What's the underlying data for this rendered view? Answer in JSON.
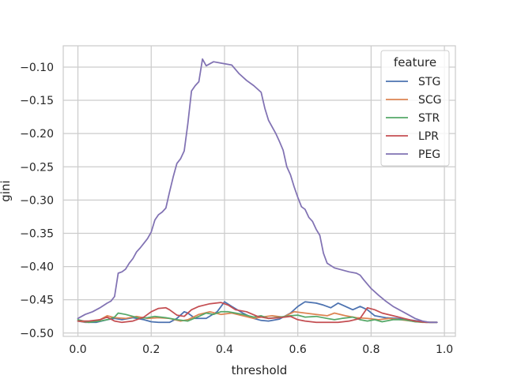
{
  "chart_data": {
    "type": "line",
    "title": "",
    "xlabel": "threshold",
    "ylabel": "gini",
    "xlim": [
      -0.04,
      1.03
    ],
    "ylim": [
      -0.505,
      -0.068
    ],
    "xticks": [
      0.0,
      0.2,
      0.4,
      0.6,
      0.8,
      1.0
    ],
    "xtick_labels": [
      "0.0",
      "0.2",
      "0.4",
      "0.6",
      "0.8",
      "1.0"
    ],
    "yticks": [
      -0.1,
      -0.15,
      -0.2,
      -0.25,
      -0.3,
      -0.35,
      -0.4,
      -0.45,
      -0.5
    ],
    "ytick_labels": [
      "−0.10",
      "−0.15",
      "−0.20",
      "−0.25",
      "−0.30",
      "−0.35",
      "−0.40",
      "−0.45",
      "−0.50"
    ],
    "grid": true,
    "legend": {
      "title": "feature",
      "position": "top-right"
    },
    "series": [
      {
        "name": "STG",
        "color": "#4c72b0",
        "x": [
          0.0,
          0.02,
          0.05,
          0.08,
          0.1,
          0.12,
          0.15,
          0.18,
          0.2,
          0.22,
          0.25,
          0.27,
          0.29,
          0.3,
          0.32,
          0.35,
          0.38,
          0.4,
          0.42,
          0.45,
          0.48,
          0.5,
          0.52,
          0.55,
          0.58,
          0.6,
          0.62,
          0.65,
          0.67,
          0.69,
          0.71,
          0.73,
          0.75,
          0.77,
          0.79,
          0.81,
          0.84,
          0.87,
          0.9,
          0.93,
          0.96,
          0.98
        ],
        "y": [
          -0.482,
          -0.484,
          -0.484,
          -0.48,
          -0.478,
          -0.48,
          -0.477,
          -0.48,
          -0.483,
          -0.484,
          -0.484,
          -0.478,
          -0.468,
          -0.47,
          -0.478,
          -0.478,
          -0.468,
          -0.453,
          -0.46,
          -0.47,
          -0.478,
          -0.481,
          -0.482,
          -0.479,
          -0.47,
          -0.46,
          -0.453,
          -0.455,
          -0.458,
          -0.462,
          -0.455,
          -0.46,
          -0.465,
          -0.46,
          -0.465,
          -0.474,
          -0.477,
          -0.478,
          -0.48,
          -0.482,
          -0.484,
          -0.484
        ]
      },
      {
        "name": "SCG",
        "color": "#dd8452",
        "x": [
          0.0,
          0.03,
          0.06,
          0.08,
          0.1,
          0.13,
          0.16,
          0.19,
          0.22,
          0.25,
          0.28,
          0.3,
          0.33,
          0.36,
          0.39,
          0.42,
          0.45,
          0.48,
          0.5,
          0.53,
          0.56,
          0.59,
          0.62,
          0.65,
          0.68,
          0.7,
          0.73,
          0.76,
          0.79,
          0.82,
          0.85,
          0.88,
          0.91,
          0.94,
          0.97
        ],
        "y": [
          -0.482,
          -0.484,
          -0.48,
          -0.474,
          -0.477,
          -0.478,
          -0.475,
          -0.478,
          -0.477,
          -0.478,
          -0.482,
          -0.48,
          -0.472,
          -0.468,
          -0.472,
          -0.47,
          -0.474,
          -0.478,
          -0.476,
          -0.474,
          -0.476,
          -0.468,
          -0.47,
          -0.472,
          -0.474,
          -0.47,
          -0.474,
          -0.477,
          -0.478,
          -0.48,
          -0.478,
          -0.48,
          -0.482,
          -0.484,
          -0.484
        ]
      },
      {
        "name": "STR",
        "color": "#55a868",
        "x": [
          0.0,
          0.03,
          0.06,
          0.08,
          0.1,
          0.11,
          0.13,
          0.15,
          0.17,
          0.19,
          0.21,
          0.24,
          0.27,
          0.3,
          0.33,
          0.35,
          0.37,
          0.39,
          0.41,
          0.43,
          0.45,
          0.48,
          0.5,
          0.52,
          0.55,
          0.58,
          0.6,
          0.62,
          0.65,
          0.68,
          0.7,
          0.72,
          0.75,
          0.77,
          0.79,
          0.81,
          0.83,
          0.86,
          0.89,
          0.92,
          0.95,
          0.98
        ],
        "y": [
          -0.48,
          -0.484,
          -0.482,
          -0.48,
          -0.476,
          -0.47,
          -0.472,
          -0.475,
          -0.478,
          -0.477,
          -0.475,
          -0.477,
          -0.48,
          -0.482,
          -0.475,
          -0.47,
          -0.472,
          -0.468,
          -0.468,
          -0.47,
          -0.472,
          -0.476,
          -0.474,
          -0.478,
          -0.476,
          -0.474,
          -0.473,
          -0.476,
          -0.475,
          -0.478,
          -0.48,
          -0.478,
          -0.476,
          -0.48,
          -0.482,
          -0.48,
          -0.483,
          -0.48,
          -0.48,
          -0.483,
          -0.484,
          -0.484
        ]
      },
      {
        "name": "LPR",
        "color": "#c44e52",
        "x": [
          0.0,
          0.03,
          0.06,
          0.08,
          0.1,
          0.12,
          0.15,
          0.18,
          0.2,
          0.22,
          0.24,
          0.25,
          0.27,
          0.29,
          0.31,
          0.33,
          0.36,
          0.39,
          0.41,
          0.43,
          0.46,
          0.49,
          0.52,
          0.55,
          0.58,
          0.6,
          0.62,
          0.65,
          0.68,
          0.71,
          0.74,
          0.77,
          0.79,
          0.81,
          0.83,
          0.86,
          0.89,
          0.92,
          0.95,
          0.98
        ],
        "y": [
          -0.482,
          -0.482,
          -0.48,
          -0.476,
          -0.482,
          -0.484,
          -0.482,
          -0.476,
          -0.468,
          -0.463,
          -0.462,
          -0.465,
          -0.473,
          -0.475,
          -0.465,
          -0.46,
          -0.456,
          -0.454,
          -0.458,
          -0.465,
          -0.468,
          -0.475,
          -0.478,
          -0.477,
          -0.475,
          -0.48,
          -0.482,
          -0.484,
          -0.484,
          -0.484,
          -0.482,
          -0.478,
          -0.462,
          -0.465,
          -0.47,
          -0.474,
          -0.478,
          -0.482,
          -0.484,
          -0.484
        ]
      },
      {
        "name": "PEG",
        "color": "#8172b3",
        "x": [
          0.0,
          0.02,
          0.04,
          0.06,
          0.08,
          0.09,
          0.1,
          0.11,
          0.12,
          0.13,
          0.14,
          0.15,
          0.16,
          0.17,
          0.18,
          0.19,
          0.2,
          0.21,
          0.22,
          0.23,
          0.24,
          0.25,
          0.26,
          0.27,
          0.28,
          0.29,
          0.3,
          0.31,
          0.32,
          0.33,
          0.34,
          0.35,
          0.37,
          0.39,
          0.42,
          0.44,
          0.46,
          0.48,
          0.5,
          0.51,
          0.52,
          0.53,
          0.54,
          0.55,
          0.56,
          0.57,
          0.58,
          0.59,
          0.6,
          0.61,
          0.62,
          0.63,
          0.64,
          0.65,
          0.66,
          0.67,
          0.68,
          0.7,
          0.72,
          0.74,
          0.76,
          0.77,
          0.78,
          0.8,
          0.82,
          0.84,
          0.86,
          0.88,
          0.9,
          0.92,
          0.94,
          0.96,
          0.98
        ],
        "y": [
          -0.478,
          -0.472,
          -0.468,
          -0.462,
          -0.455,
          -0.452,
          -0.445,
          -0.41,
          -0.408,
          -0.404,
          -0.395,
          -0.388,
          -0.378,
          -0.372,
          -0.365,
          -0.358,
          -0.348,
          -0.33,
          -0.322,
          -0.318,
          -0.312,
          -0.288,
          -0.265,
          -0.245,
          -0.238,
          -0.226,
          -0.185,
          -0.136,
          -0.128,
          -0.122,
          -0.088,
          -0.098,
          -0.092,
          -0.094,
          -0.097,
          -0.11,
          -0.12,
          -0.128,
          -0.138,
          -0.162,
          -0.18,
          -0.19,
          -0.2,
          -0.212,
          -0.225,
          -0.25,
          -0.262,
          -0.28,
          -0.296,
          -0.31,
          -0.314,
          -0.326,
          -0.332,
          -0.344,
          -0.353,
          -0.38,
          -0.395,
          -0.402,
          -0.405,
          -0.408,
          -0.41,
          -0.413,
          -0.42,
          -0.433,
          -0.443,
          -0.452,
          -0.46,
          -0.466,
          -0.472,
          -0.478,
          -0.482,
          -0.484,
          -0.484
        ]
      }
    ]
  }
}
